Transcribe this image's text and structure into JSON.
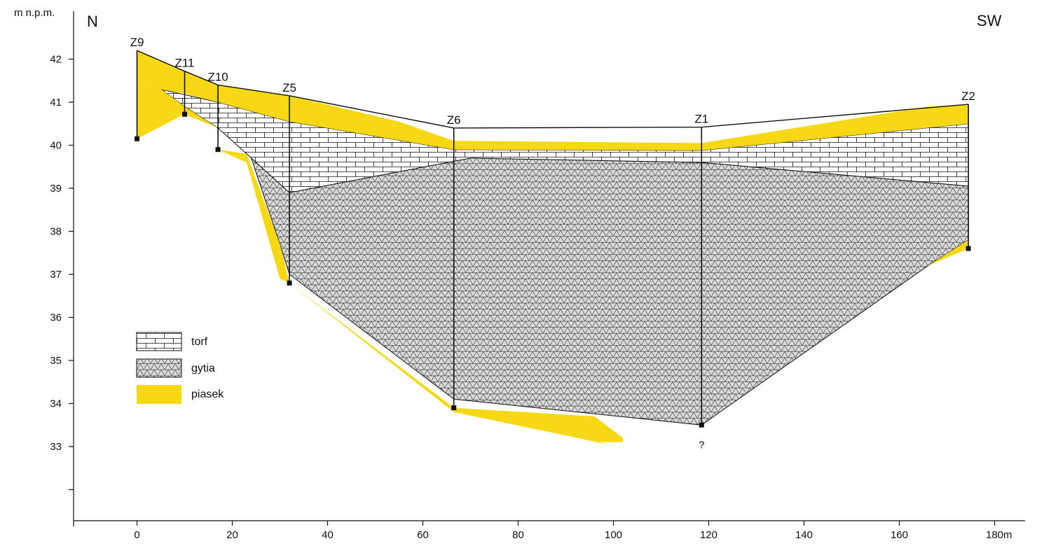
{
  "chart_data": {
    "type": "cross-section",
    "y_unit_label": "m n.p.m.",
    "x_unit_label": "m",
    "direction_left": "N",
    "direction_right": "SW",
    "x_ticks": [
      "0",
      "20",
      "40",
      "60",
      "80",
      "100",
      "120",
      "140",
      "160",
      "180"
    ],
    "y_ticks": [
      "42",
      "41",
      "40",
      "39",
      "38",
      "37",
      "36",
      "35",
      "34",
      "33"
    ],
    "xlim": [
      -13,
      187
    ],
    "ylim": [
      31,
      43.5
    ],
    "colors": {
      "piasek": "#f7d815",
      "gytia_fill": "#d9d9d9",
      "line": "#111111"
    },
    "boreholes": [
      {
        "name": "Z9",
        "x": 0,
        "top": 42.2,
        "bottom": 40.15
      },
      {
        "name": "Z11",
        "x": 10,
        "top": 41.72,
        "bottom": 40.72
      },
      {
        "name": "Z10",
        "x": 17,
        "top": 41.4,
        "bottom": 39.9
      },
      {
        "name": "Z5",
        "x": 32,
        "top": 41.15,
        "bottom": 36.8
      },
      {
        "name": "Z6",
        "x": 66.5,
        "top": 40.4,
        "bottom": 33.9
      },
      {
        "name": "Z1",
        "x": 118.5,
        "top": 40.42,
        "bottom": 33.5,
        "note": "?"
      },
      {
        "name": "Z2",
        "x": 174.5,
        "top": 40.95,
        "bottom": 37.6
      }
    ],
    "layers": {
      "piasek": [
        [
          [
            0,
            42.2
          ],
          [
            10,
            41.72
          ],
          [
            17,
            41.4
          ],
          [
            32,
            41.15
          ],
          [
            55,
            40.55
          ],
          [
            66.5,
            40.1
          ],
          [
            118.5,
            40.05
          ],
          [
            166,
            40.9
          ],
          [
            174.5,
            40.95
          ],
          [
            174.5,
            40.5
          ],
          [
            118.5,
            39.88
          ],
          [
            66.5,
            39.9
          ],
          [
            32,
            40.55
          ],
          [
            17,
            41.0
          ],
          [
            10,
            41.2
          ],
          [
            5,
            41.3
          ],
          [
            0,
            41.4
          ]
        ],
        [
          [
            0,
            41.4
          ],
          [
            5,
            41.3
          ],
          [
            10,
            40.9
          ],
          [
            10,
            40.72
          ],
          [
            0,
            40.15
          ]
        ],
        [
          [
            5,
            41.3
          ],
          [
            10,
            40.72
          ],
          [
            17,
            40.4
          ],
          [
            17,
            39.9
          ],
          [
            23,
            39.8
          ],
          [
            30,
            37.7
          ],
          [
            32,
            36.8
          ],
          [
            66.5,
            33.9
          ],
          [
            96,
            33.7
          ],
          [
            102,
            33.2
          ],
          [
            102,
            33.1
          ],
          [
            96,
            33.1
          ],
          [
            101,
            33.0
          ],
          [
            66.5,
            33.8
          ],
          [
            32,
            36.8
          ],
          [
            30,
            36.9
          ],
          [
            23,
            39.6
          ],
          [
            17,
            39.9
          ],
          [
            17,
            40.4
          ],
          [
            10,
            40.9
          ]
        ],
        [
          [
            166,
            37.2
          ],
          [
            174.5,
            37.8
          ],
          [
            174.5,
            37.6
          ]
        ]
      ],
      "torf": [
        [
          [
            5,
            41.3
          ],
          [
            17,
            41.0
          ],
          [
            32,
            40.55
          ],
          [
            66.5,
            39.9
          ],
          [
            118.5,
            39.88
          ],
          [
            174.5,
            40.5
          ],
          [
            174.5,
            39.05
          ],
          [
            118.5,
            39.6
          ],
          [
            70,
            39.7
          ],
          [
            32,
            38.9
          ],
          [
            24,
            39.7
          ],
          [
            17,
            40.4
          ],
          [
            10,
            40.9
          ]
        ]
      ],
      "gytia": [
        [
          [
            24,
            39.7
          ],
          [
            32,
            38.9
          ],
          [
            70,
            39.7
          ],
          [
            118.5,
            39.6
          ],
          [
            174.5,
            39.05
          ],
          [
            174.5,
            37.8
          ],
          [
            166,
            37.2
          ],
          [
            118.5,
            33.5
          ],
          [
            66.5,
            34.1
          ],
          [
            32,
            37.0
          ],
          [
            30,
            37.7
          ]
        ]
      ]
    }
  },
  "legend": [
    {
      "label": "torf",
      "pattern": "torf"
    },
    {
      "label": "gytia",
      "pattern": "gytia"
    },
    {
      "label": "piasek",
      "pattern": "piasek"
    }
  ]
}
